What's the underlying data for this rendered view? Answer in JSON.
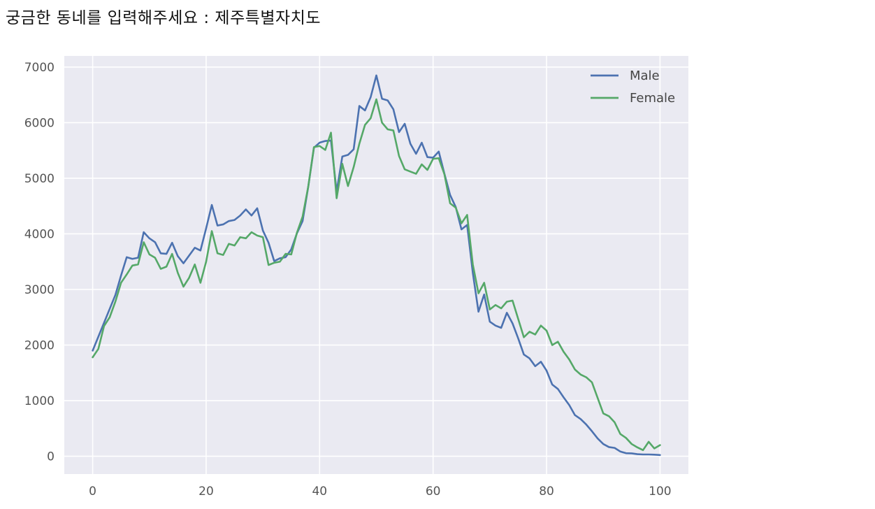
{
  "prompt": {
    "label": "궁금한 동네를 입력해주세요",
    "separator": " : ",
    "value": "제주특별자치도"
  },
  "chart_data": {
    "type": "line",
    "title": "",
    "xlabel": "",
    "ylabel": "",
    "xlim": [
      -5,
      105
    ],
    "ylim": [
      -320,
      7200
    ],
    "grid": true,
    "legend_position": "top-right",
    "x_ticks": [
      0,
      20,
      40,
      60,
      80,
      100
    ],
    "y_ticks": [
      0,
      1000,
      2000,
      3000,
      4000,
      5000,
      6000,
      7000
    ],
    "colors": {
      "background": "#EAEAF2",
      "grid": "#ffffff",
      "male": "#4C72B0",
      "female": "#55A868"
    },
    "series": [
      {
        "name": "Male",
        "color": "#4C72B0",
        "values": [
          1900,
          2150,
          2400,
          2650,
          2900,
          3250,
          3580,
          3550,
          3570,
          4030,
          3920,
          3850,
          3650,
          3640,
          3840,
          3600,
          3470,
          3610,
          3750,
          3700,
          4100,
          4520,
          4150,
          4170,
          4230,
          4250,
          4330,
          4440,
          4330,
          4460,
          4060,
          3840,
          3510,
          3560,
          3580,
          3720,
          4010,
          4230,
          4850,
          5550,
          5640,
          5670,
          5680,
          4760,
          5390,
          5420,
          5520,
          6300,
          6220,
          6460,
          6850,
          6430,
          6400,
          6240,
          5830,
          5980,
          5620,
          5440,
          5640,
          5380,
          5370,
          5480,
          5080,
          4700,
          4480,
          4080,
          4160,
          3300,
          2600,
          2910,
          2420,
          2350,
          2310,
          2580,
          2390,
          2120,
          1830,
          1760,
          1620,
          1700,
          1540,
          1290,
          1210,
          1060,
          920,
          740,
          670,
          570,
          450,
          320,
          220,
          165,
          150,
          85,
          55,
          52,
          38,
          32,
          32,
          28,
          22
        ]
      },
      {
        "name": "Female",
        "color": "#55A868",
        "values": [
          1780,
          1930,
          2340,
          2500,
          2780,
          3120,
          3270,
          3430,
          3450,
          3850,
          3630,
          3570,
          3370,
          3410,
          3640,
          3300,
          3050,
          3210,
          3450,
          3120,
          3500,
          4050,
          3650,
          3620,
          3820,
          3790,
          3940,
          3920,
          4030,
          3970,
          3940,
          3440,
          3480,
          3500,
          3640,
          3630,
          4020,
          4310,
          4850,
          5560,
          5580,
          5510,
          5820,
          4640,
          5260,
          4860,
          5200,
          5620,
          5960,
          6080,
          6420,
          6000,
          5880,
          5860,
          5400,
          5160,
          5120,
          5080,
          5250,
          5150,
          5350,
          5360,
          5070,
          4550,
          4470,
          4190,
          4340,
          3450,
          2930,
          3120,
          2640,
          2720,
          2660,
          2780,
          2800,
          2470,
          2140,
          2240,
          2190,
          2350,
          2260,
          2000,
          2060,
          1880,
          1740,
          1560,
          1470,
          1420,
          1330,
          1050,
          770,
          720,
          610,
          400,
          330,
          220,
          160,
          110,
          260,
          140,
          200
        ]
      }
    ]
  }
}
